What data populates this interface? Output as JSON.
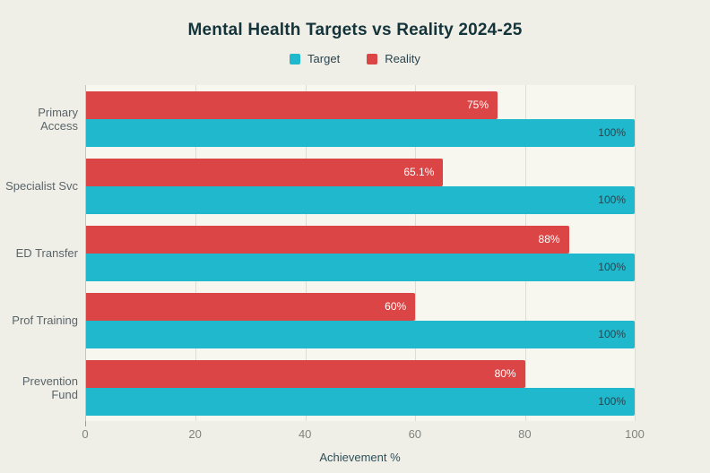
{
  "chart_data": {
    "type": "bar",
    "orientation": "horizontal",
    "title": "Mental Health Targets vs Reality 2024-25",
    "xlabel": "Achievement %",
    "categories": [
      "Primary Access",
      "Specialist Svc",
      "ED Transfer",
      "Prof Training",
      "Prevention Fund"
    ],
    "series": [
      {
        "name": "Target",
        "color": "#1FB8CD",
        "label_color": "#26454E",
        "values": [
          100,
          100,
          100,
          100,
          100
        ],
        "labels": [
          "100%",
          "100%",
          "100%",
          "100%",
          "100%"
        ]
      },
      {
        "name": "Reality",
        "color": "#DB4545",
        "label_color": "#FFFFFF",
        "values": [
          75,
          65.1,
          88,
          60,
          80
        ],
        "labels": [
          "75%",
          "65.1%",
          "88%",
          "60%",
          "80%"
        ]
      }
    ],
    "xlim": [
      0,
      100
    ],
    "xticks": [
      0,
      20,
      40,
      60,
      80,
      100
    ],
    "grid": true,
    "legend_position": "top"
  },
  "style": {
    "paper_background": "#F0EFE7",
    "plot_background": "#F7F6EF",
    "grid_color": "#DEDDD4",
    "title_color": "#13343B",
    "tick_color": "#7F837E"
  }
}
